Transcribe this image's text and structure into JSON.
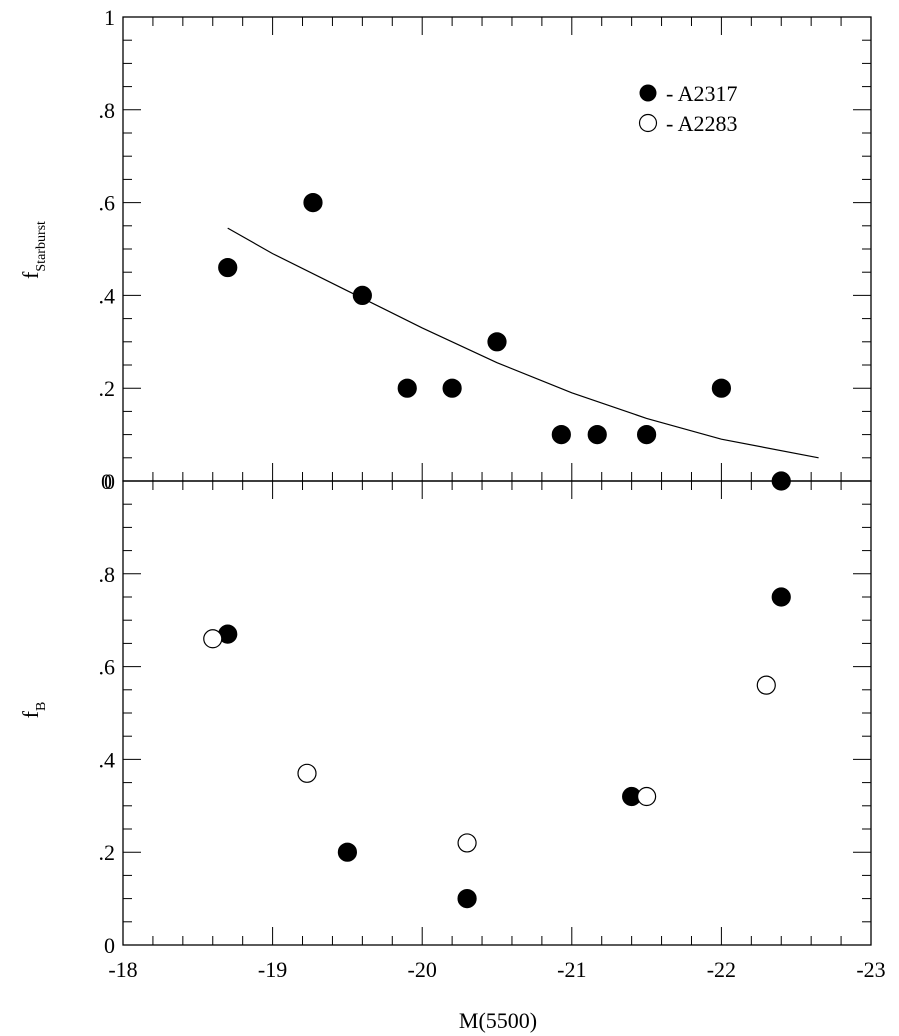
{
  "chart_data": [
    {
      "type": "scatter",
      "panel": "top",
      "ylabel": "f",
      "ylabel_subscript": "Starburst",
      "xlim": [
        -18,
        -23
      ],
      "ylim": [
        0,
        1
      ],
      "yticks": [
        0,
        0.2,
        0.4,
        0.6,
        0.8,
        1.0
      ],
      "ytick_labels": [
        "0",
        ".2",
        ".4",
        ".6",
        ".8",
        "1"
      ],
      "bottom_extra_label": "0",
      "legend": {
        "placement": "top-right",
        "entries": [
          {
            "label": "- A2317",
            "marker": "filled-circle"
          },
          {
            "label": "- A2283",
            "marker": "open-circle"
          }
        ]
      },
      "series": [
        {
          "name": "A2317",
          "marker": "filled-circle",
          "points": [
            {
              "x": -18.7,
              "y": 0.46
            },
            {
              "x": -19.27,
              "y": 0.6
            },
            {
              "x": -19.6,
              "y": 0.4
            },
            {
              "x": -19.9,
              "y": 0.2
            },
            {
              "x": -20.2,
              "y": 0.2
            },
            {
              "x": -20.5,
              "y": 0.3
            },
            {
              "x": -20.93,
              "y": 0.1
            },
            {
              "x": -21.17,
              "y": 0.1
            },
            {
              "x": -21.5,
              "y": 0.1
            },
            {
              "x": -22.0,
              "y": 0.2
            },
            {
              "x": -22.4,
              "y": 0.0
            }
          ]
        }
      ],
      "fit_curve": {
        "points": [
          {
            "x": -18.7,
            "y": 0.545
          },
          {
            "x": -19.0,
            "y": 0.49
          },
          {
            "x": -19.5,
            "y": 0.41
          },
          {
            "x": -20.0,
            "y": 0.33
          },
          {
            "x": -20.5,
            "y": 0.255
          },
          {
            "x": -21.0,
            "y": 0.19
          },
          {
            "x": -21.5,
            "y": 0.135
          },
          {
            "x": -22.0,
            "y": 0.09
          },
          {
            "x": -22.65,
            "y": 0.05
          }
        ]
      }
    },
    {
      "type": "scatter",
      "panel": "bottom",
      "xlabel": "M(5500)",
      "ylabel": "f",
      "ylabel_subscript": "B",
      "xlim": [
        -18,
        -23
      ],
      "ylim": [
        0,
        1
      ],
      "xticks": [
        -18,
        -19,
        -20,
        -21,
        -22,
        -23
      ],
      "xtick_labels": [
        "-18",
        "-19",
        "-20",
        "-21",
        "-22",
        "-23"
      ],
      "yticks": [
        0,
        0.2,
        0.4,
        0.6,
        0.8
      ],
      "ytick_labels": [
        "0",
        ".2",
        ".4",
        ".6",
        ".8"
      ],
      "series": [
        {
          "name": "A2317",
          "marker": "filled-circle",
          "points": [
            {
              "x": -18.7,
              "y": 0.67
            },
            {
              "x": -19.5,
              "y": 0.2
            },
            {
              "x": -20.3,
              "y": 0.1
            },
            {
              "x": -21.4,
              "y": 0.32
            },
            {
              "x": -22.4,
              "y": 0.75
            }
          ]
        },
        {
          "name": "A2283",
          "marker": "open-circle",
          "points": [
            {
              "x": -18.6,
              "y": 0.66
            },
            {
              "x": -19.23,
              "y": 0.37
            },
            {
              "x": -20.3,
              "y": 0.22
            },
            {
              "x": -21.5,
              "y": 0.32
            },
            {
              "x": -22.3,
              "y": 0.56
            }
          ]
        }
      ]
    }
  ]
}
